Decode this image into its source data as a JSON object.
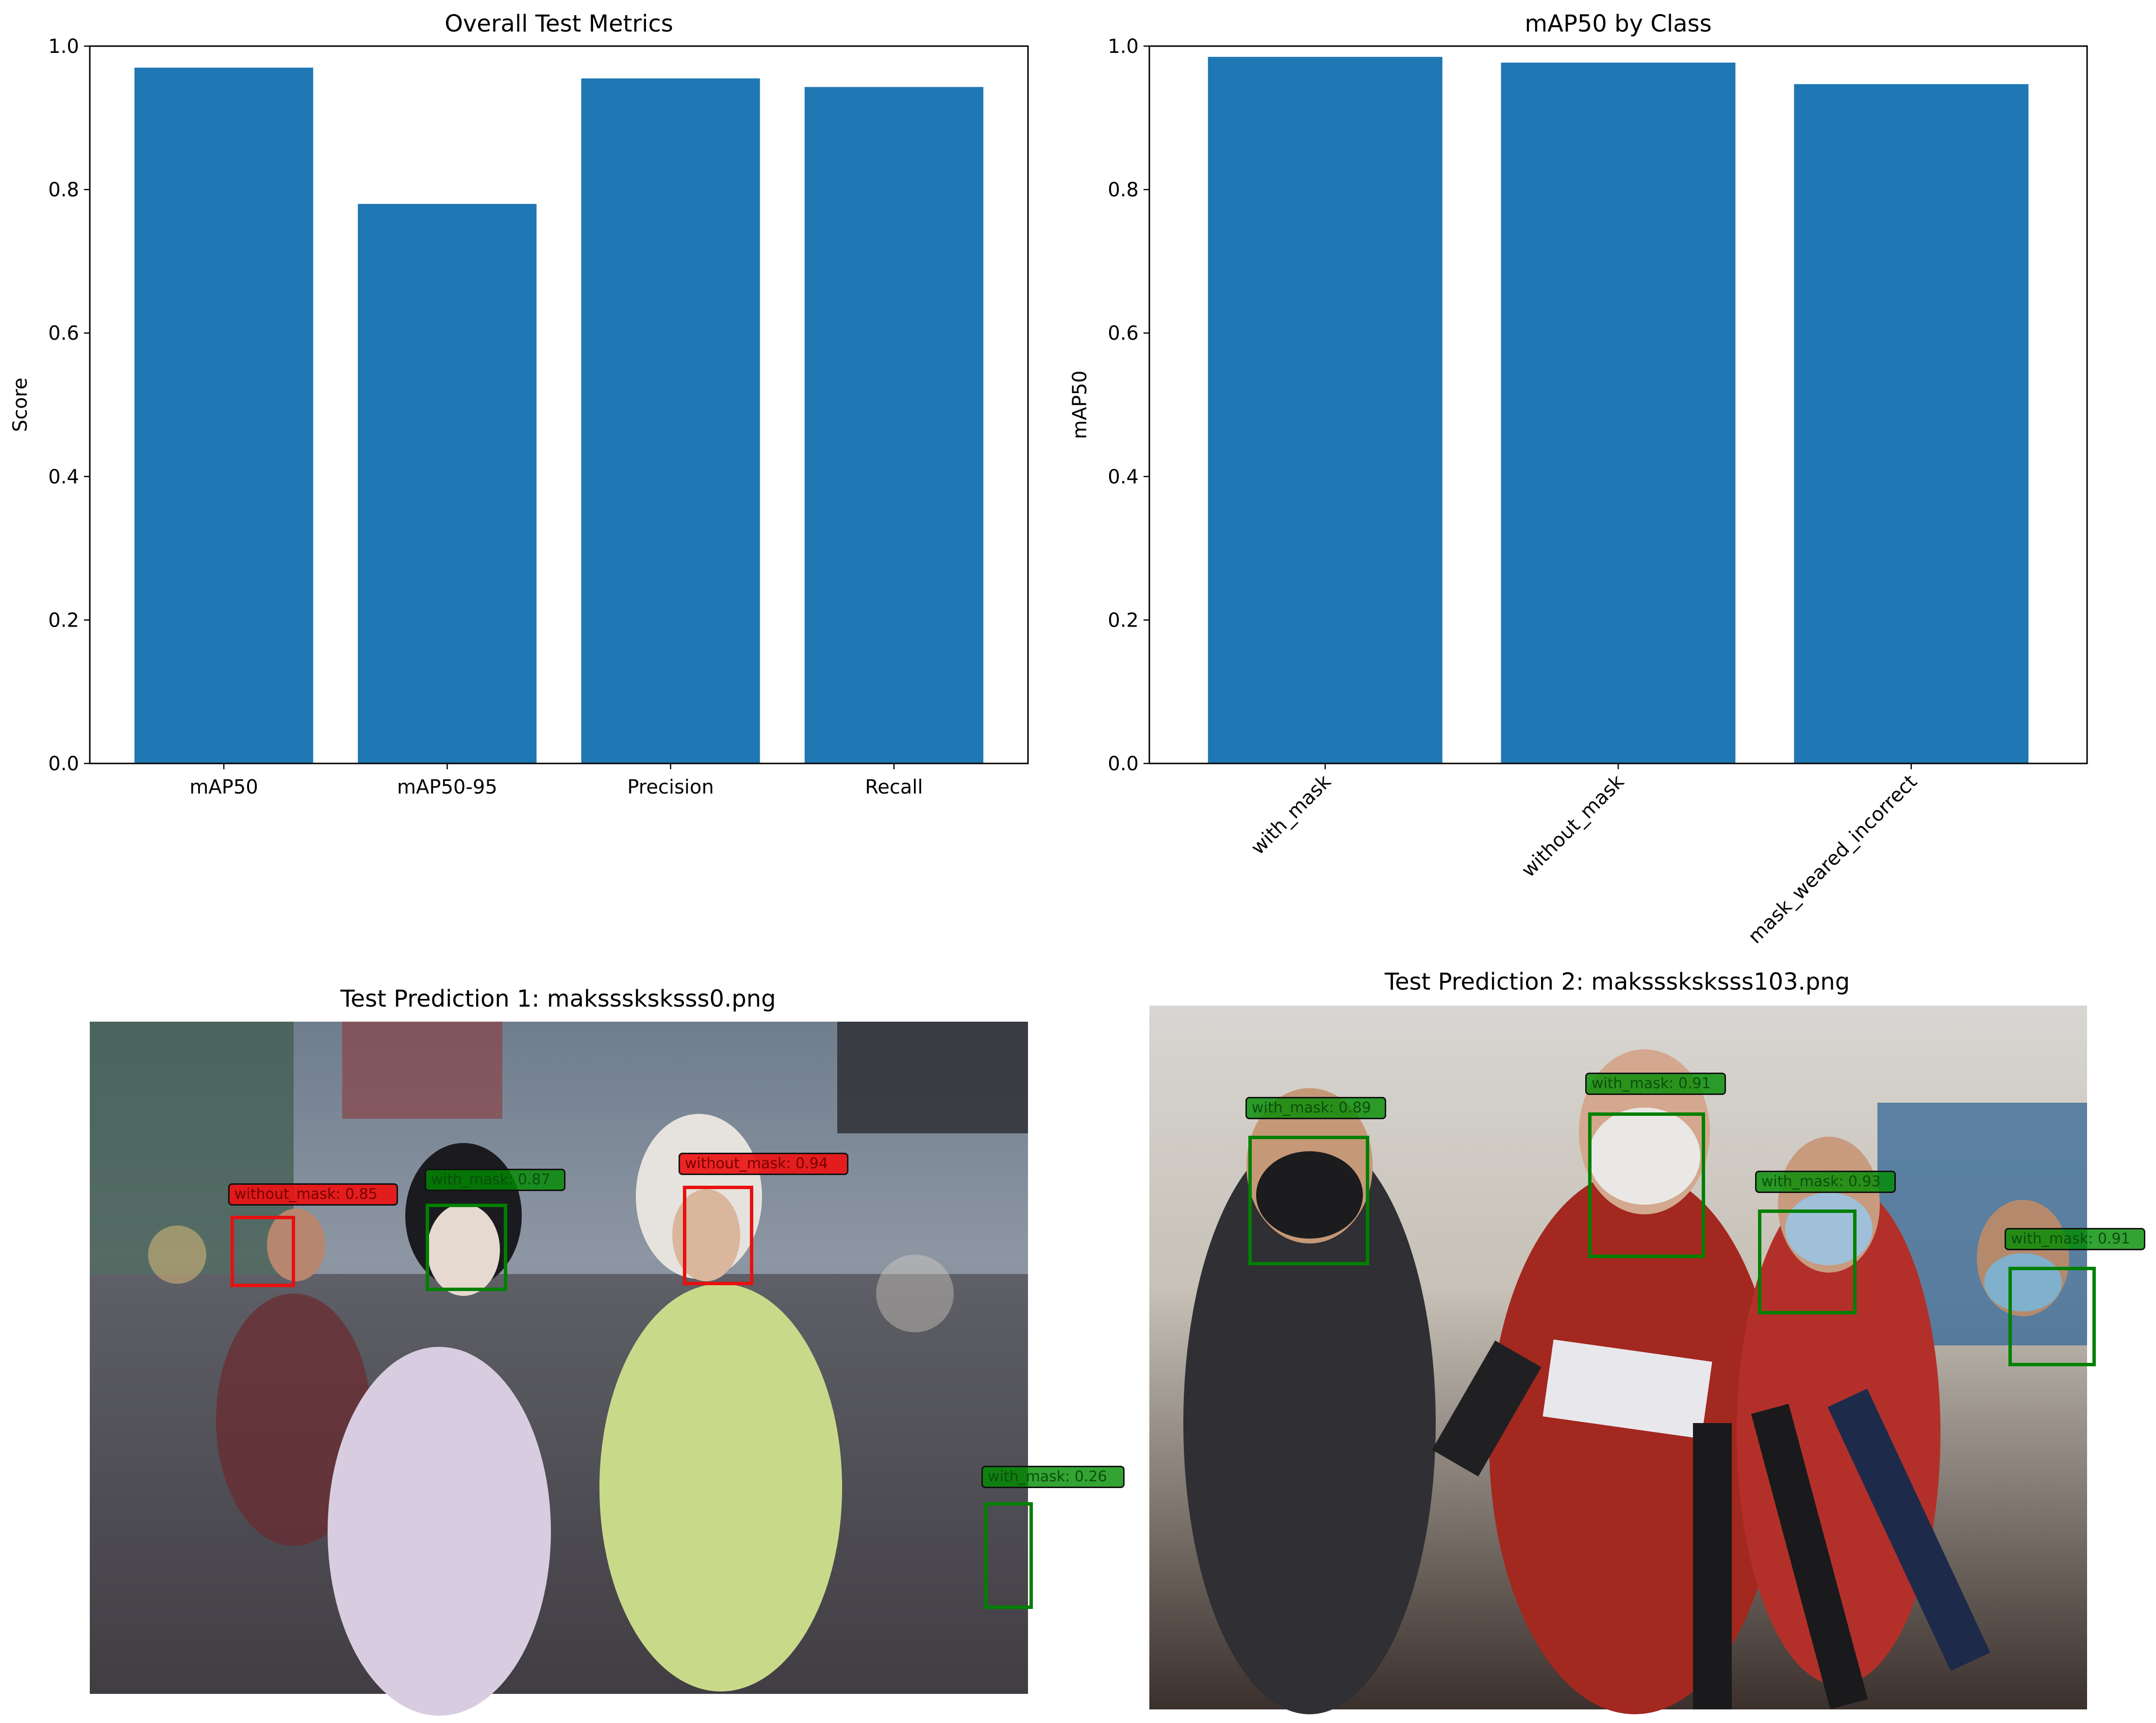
{
  "colors": {
    "bar": "#1f77b4",
    "with_mask_box": "#008000",
    "without_mask_box": "#e81010",
    "text": "#000000"
  },
  "chart_data": [
    {
      "type": "bar",
      "title": "Overall Test Metrics",
      "xlabel": "",
      "ylabel": "Score",
      "categories": [
        "mAP50",
        "mAP50-95",
        "Precision",
        "Recall"
      ],
      "values": [
        0.97,
        0.78,
        0.955,
        0.943
      ],
      "ylim": [
        0,
        1.0
      ],
      "yticks": [
        "0.0",
        "0.2",
        "0.4",
        "0.6",
        "0.8",
        "1.0"
      ],
      "grid": false
    },
    {
      "type": "bar",
      "title": "mAP50 by Class",
      "xlabel": "",
      "ylabel": "mAP50",
      "categories": [
        "with_mask",
        "without_mask",
        "mask_weared_incorrect"
      ],
      "values": [
        0.985,
        0.977,
        0.947
      ],
      "ylim": [
        0,
        1.0
      ],
      "yticks": [
        "0.0",
        "0.2",
        "0.4",
        "0.6",
        "0.8",
        "1.0"
      ],
      "xtick_rotation": 45,
      "grid": false
    }
  ],
  "predictions": [
    {
      "title": "Test Prediction 1: maksssksksss0.png",
      "labels": [
        "without_mask: 0.85",
        "with_mask: 0.87",
        "without_mask: 0.94",
        "with_mask: 0.26"
      ]
    },
    {
      "title": "Test Prediction 2: maksssksksss103.png",
      "labels": [
        "with_mask: 0.89",
        "with_mask: 0.91",
        "with_mask: 0.93",
        "with_mask: 0.91"
      ]
    }
  ]
}
